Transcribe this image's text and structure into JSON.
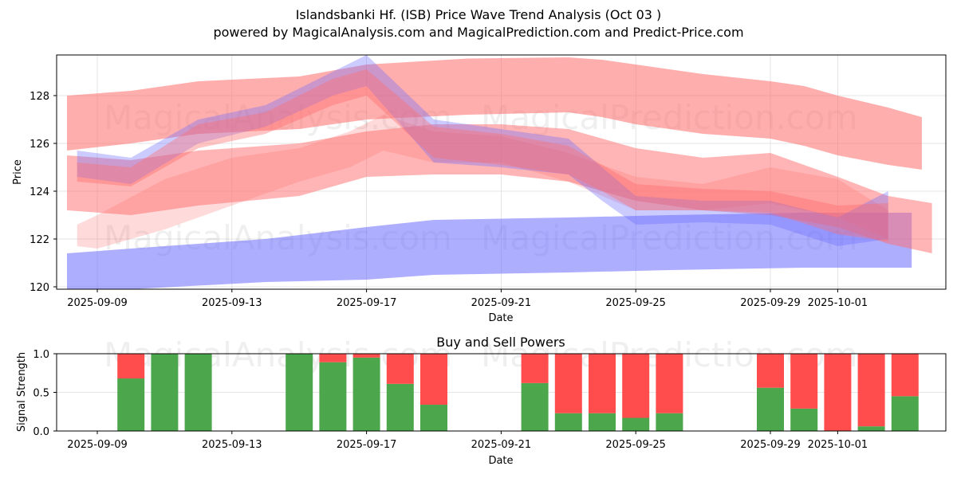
{
  "header": {
    "title": "Islandsbanki Hf. (ISB) Price Wave Trend Analysis (Oct 03 )",
    "subtitle": "powered by MagicalAnalysis.com and MagicalPrediction.com and Predict-Price.com"
  },
  "watermarks": [
    "MagicalAnalysis.com",
    "MagicalPrediction.com"
  ],
  "colors": {
    "buy": "#4ca64c",
    "sell": "#ff4c4c",
    "red_band": "#ff6b6b",
    "blue_band": "#6b6bff",
    "grid": "#dddddd"
  },
  "chart_data": [
    {
      "type": "area",
      "title": "",
      "xlabel": "Date",
      "ylabel": "Price",
      "ylim": [
        119.9,
        129.7
      ],
      "xlim_days_from_2025-09-09": [
        -1.2,
        25.2
      ],
      "grid": true,
      "x_ticks": [
        "2025-09-09",
        "2025-09-13",
        "2025-09-17",
        "2025-09-21",
        "2025-09-25",
        "2025-09-29",
        "2025-10-01"
      ],
      "x_tick_days": [
        0,
        4,
        8,
        12,
        16,
        20,
        22
      ],
      "y_ticks": [
        120,
        122,
        124,
        126,
        128
      ],
      "bands": [
        {
          "name": "red-upper-band",
          "color": "red",
          "opacity": 0.55,
          "x": [
            -0.9,
            1,
            3,
            6,
            8,
            11,
            14,
            15,
            16,
            18,
            20,
            21,
            22,
            23.5,
            24.5
          ],
          "upper": [
            128.0,
            128.2,
            128.6,
            128.8,
            129.3,
            129.55,
            129.6,
            129.5,
            129.3,
            128.9,
            128.6,
            128.4,
            128.0,
            127.5,
            127.1
          ],
          "lower": [
            125.7,
            126.0,
            126.4,
            126.6,
            127.0,
            127.2,
            127.3,
            127.1,
            126.8,
            126.4,
            126.2,
            125.9,
            125.5,
            125.1,
            124.9
          ]
        },
        {
          "name": "blue-lower-band",
          "color": "blue",
          "opacity": 0.55,
          "x": [
            -0.9,
            1,
            5,
            8,
            10,
            14,
            17,
            21,
            24.2
          ],
          "upper": [
            121.4,
            121.6,
            122.0,
            122.5,
            122.8,
            122.9,
            123.0,
            123.1,
            123.1
          ],
          "lower": [
            119.7,
            119.9,
            120.2,
            120.3,
            120.5,
            120.6,
            120.7,
            120.8,
            120.8
          ]
        },
        {
          "name": "red-mid-band",
          "color": "red",
          "opacity": 0.5,
          "x": [
            -0.9,
            1,
            3,
            6,
            8,
            10,
            12,
            14,
            16,
            18,
            20,
            22,
            23.5,
            24.8
          ],
          "upper": [
            125.5,
            125.3,
            125.7,
            126.0,
            126.5,
            126.8,
            126.8,
            126.6,
            125.8,
            125.4,
            125.6,
            124.6,
            123.8,
            123.5
          ],
          "lower": [
            123.2,
            123.0,
            123.4,
            123.8,
            124.6,
            124.7,
            124.7,
            124.4,
            123.6,
            123.2,
            123.0,
            122.5,
            121.8,
            121.4
          ]
        },
        {
          "name": "red-faint-band",
          "color": "red",
          "opacity": 0.25,
          "x": [
            -0.6,
            0,
            2,
            4,
            6,
            7.5,
            8.5,
            10,
            12,
            14,
            16,
            18,
            20,
            22,
            23.5
          ],
          "upper": [
            122.6,
            123.0,
            124.5,
            125.4,
            125.8,
            126.5,
            127.2,
            126.5,
            126.3,
            125.6,
            124.6,
            124.3,
            125.0,
            124.5,
            123.2
          ],
          "lower": [
            121.7,
            121.6,
            122.4,
            123.4,
            124.4,
            125.0,
            125.7,
            125.2,
            125.2,
            124.4,
            123.2,
            123.2,
            123.5,
            122.9,
            122.0
          ]
        },
        {
          "name": "purple-cluster-band-1",
          "color": "blue",
          "opacity": 0.35,
          "x": [
            -0.6,
            1,
            3,
            5,
            7,
            8,
            10,
            12,
            14,
            15,
            16,
            18,
            20,
            22,
            23.5
          ],
          "upper": [
            125.7,
            125.4,
            127.0,
            127.6,
            129.0,
            129.7,
            127.0,
            126.6,
            126.2,
            125.0,
            123.8,
            123.6,
            123.6,
            122.9,
            124.0
          ],
          "lower": [
            124.6,
            124.3,
            126.0,
            126.7,
            128.0,
            128.4,
            125.2,
            125.0,
            124.7,
            123.6,
            122.6,
            122.7,
            122.6,
            121.7,
            122.0
          ]
        },
        {
          "name": "purple-cluster-band-2",
          "color": "red",
          "opacity": 0.4,
          "x": [
            -0.6,
            1,
            3,
            5,
            7,
            8,
            10,
            12,
            14,
            15,
            16,
            18,
            20,
            22,
            23.5
          ],
          "upper": [
            125.2,
            125.0,
            126.8,
            127.3,
            128.7,
            129.1,
            126.7,
            126.4,
            125.9,
            125.1,
            124.3,
            124.1,
            124.0,
            123.4,
            123.5
          ],
          "lower": [
            124.4,
            124.2,
            125.8,
            126.4,
            127.6,
            128.0,
            125.4,
            125.1,
            124.7,
            124.0,
            123.2,
            123.2,
            123.1,
            122.2,
            121.9
          ]
        }
      ]
    },
    {
      "type": "bar",
      "title": "Buy and Sell Powers",
      "xlabel": "Date",
      "ylabel": "Signal Strength",
      "ylim": [
        0,
        1.0
      ],
      "y_ticks": [
        "0.0",
        "0.5",
        "1.0"
      ],
      "x_ticks": [
        "2025-09-09",
        "2025-09-13",
        "2025-09-17",
        "2025-09-21",
        "2025-09-25",
        "2025-09-29",
        "2025-10-01"
      ],
      "x_tick_days": [
        0,
        4,
        8,
        12,
        16,
        20,
        22
      ],
      "categories": [
        "2025-09-10",
        "2025-09-11",
        "2025-09-12",
        "2025-09-15",
        "2025-09-16",
        "2025-09-17",
        "2025-09-18",
        "2025-09-19",
        "2025-09-22",
        "2025-09-23",
        "2025-09-24",
        "2025-09-25",
        "2025-09-26",
        "2025-09-29",
        "2025-09-30",
        "2025-10-01",
        "2025-10-02",
        "2025-10-03"
      ],
      "category_days": [
        1,
        2,
        3,
        6,
        7,
        8,
        9,
        10,
        13,
        14,
        15,
        16,
        17,
        20,
        21,
        22,
        23,
        24
      ],
      "series": [
        {
          "name": "Buy",
          "values": [
            0.68,
            1.0,
            1.0,
            1.0,
            0.89,
            0.95,
            0.61,
            0.34,
            0.62,
            0.23,
            0.23,
            0.17,
            0.23,
            0.56,
            0.29,
            0.0,
            0.06,
            0.45
          ]
        },
        {
          "name": "Sell",
          "values": [
            0.32,
            0.0,
            0.0,
            0.0,
            0.11,
            0.05,
            0.39,
            0.66,
            0.38,
            0.77,
            0.77,
            0.83,
            0.77,
            0.44,
            0.71,
            1.0,
            0.94,
            0.55
          ]
        }
      ]
    }
  ]
}
